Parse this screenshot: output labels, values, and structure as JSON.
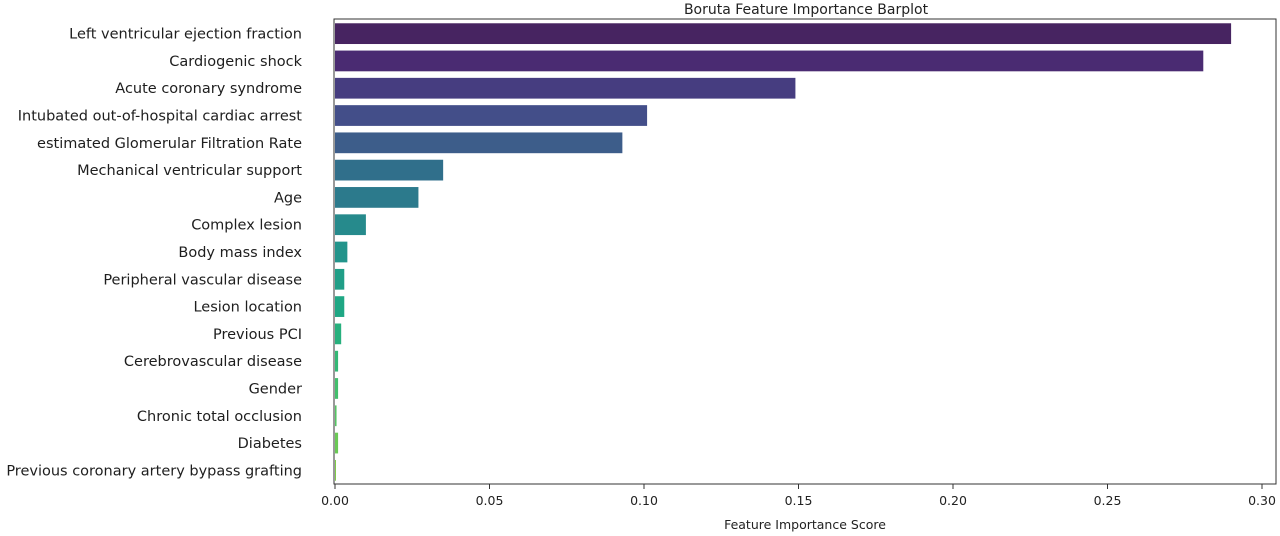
{
  "chart_data": {
    "type": "bar",
    "orientation": "horizontal",
    "title": "Boruta Feature Importance Barplot",
    "xlabel": "Feature Importance Score",
    "ylabel": "",
    "xlim": [
      0,
      0.3
    ],
    "xticks": [
      "0.00",
      "0.05",
      "0.10",
      "0.15",
      "0.20",
      "0.25",
      "0.30"
    ],
    "grid": false,
    "categories": [
      "Left ventricular ejection fraction",
      "Cardiogenic shock",
      "Acute coronary syndrome",
      "Intubated out-of-hospital cardiac arrest",
      "estimated Glomerular Filtration Rate",
      "Mechanical ventricular support",
      "Age",
      "Complex lesion",
      "Body mass index",
      "Peripheral vascular disease",
      "Lesion location",
      "Previous PCI",
      "Cerebrovascular disease",
      "Gender",
      "Chronic total occlusion",
      "Diabetes",
      "Previous coronary artery bypass grafting"
    ],
    "values": [
      0.29,
      0.281,
      0.149,
      0.101,
      0.093,
      0.035,
      0.027,
      0.01,
      0.004,
      0.003,
      0.003,
      0.002,
      0.001,
      0.001,
      0.0005,
      0.001,
      0.0003
    ],
    "colors": [
      "#472461",
      "#4a2b72",
      "#463d80",
      "#434e89",
      "#3d5d8a",
      "#306f8b",
      "#2c7a8c",
      "#268a8c",
      "#22948b",
      "#209e87",
      "#1fa784",
      "#27b07d",
      "#33b875",
      "#42bf6c",
      "#55c563",
      "#6ac955",
      "#80cd49"
    ]
  }
}
